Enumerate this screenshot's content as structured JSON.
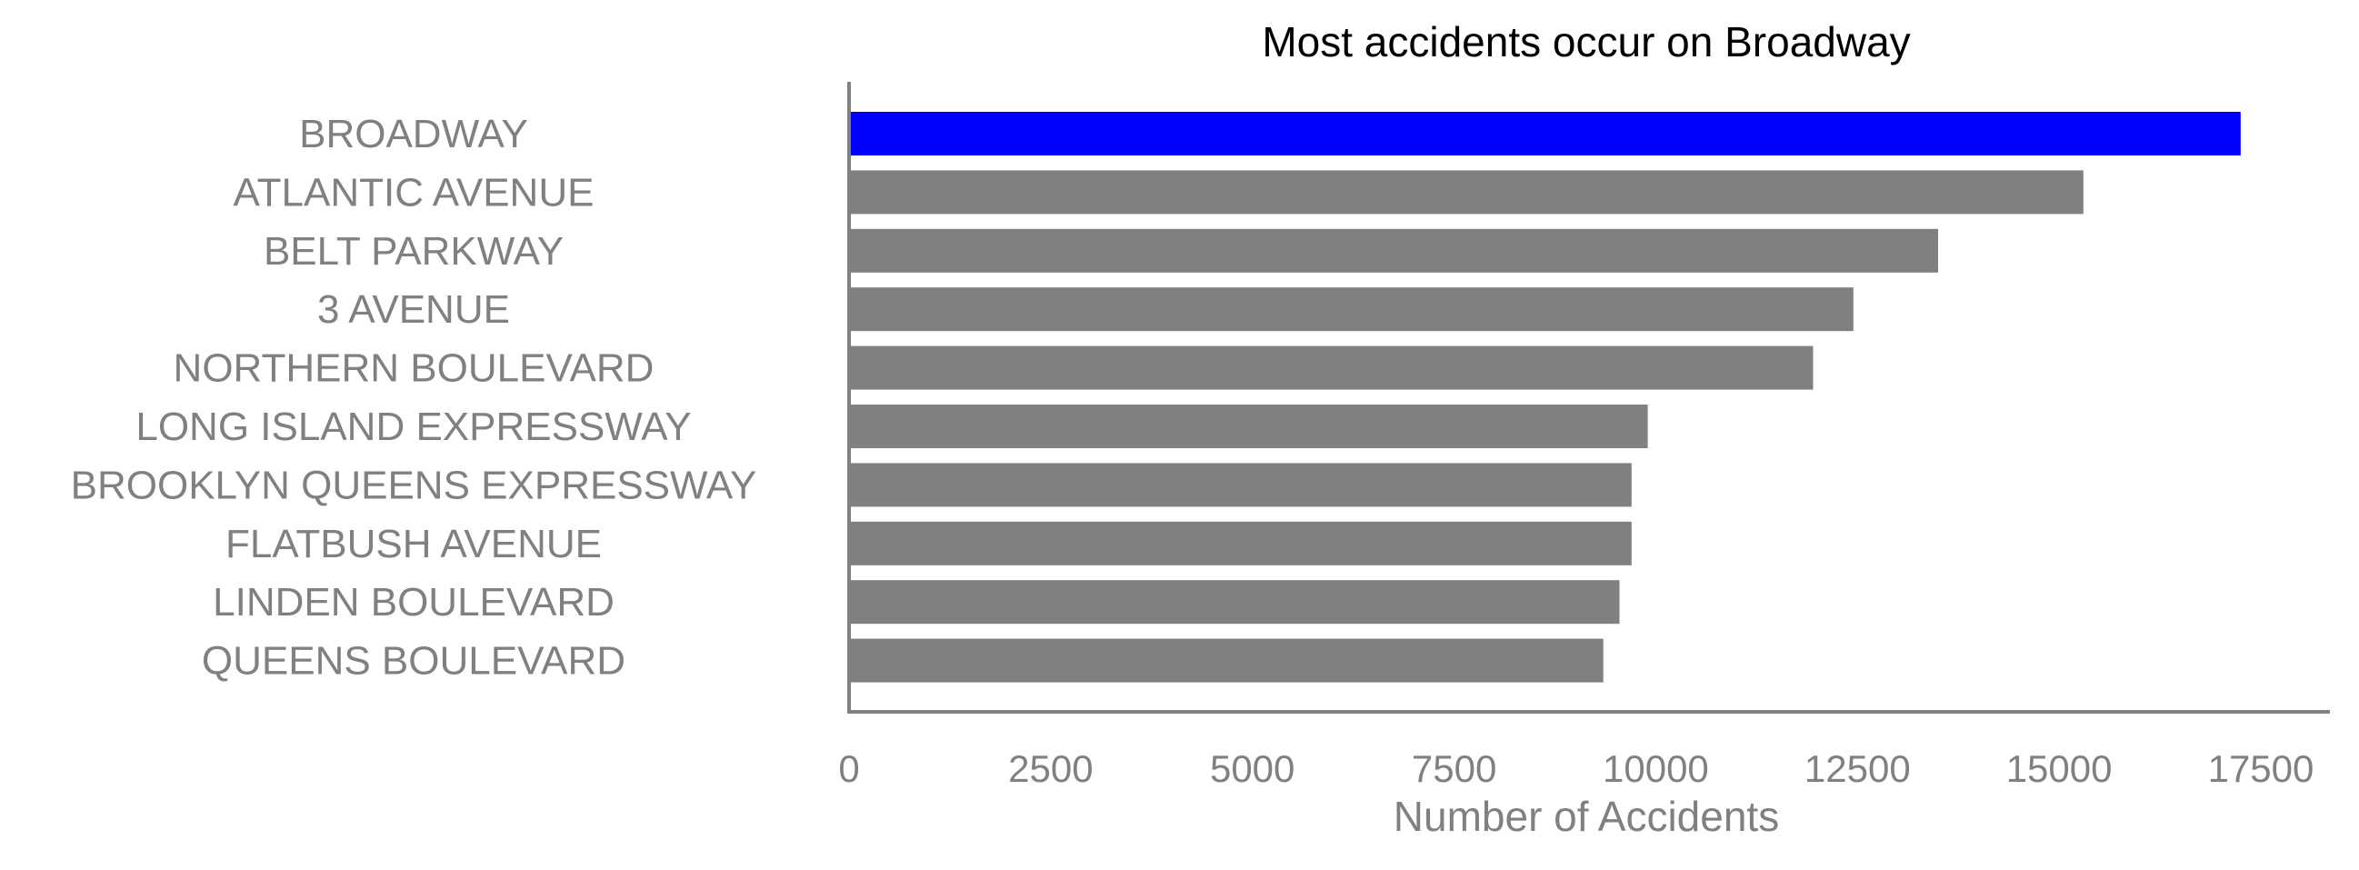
{
  "chart_data": {
    "type": "bar",
    "orientation": "horizontal",
    "title": "Most accidents occur on Broadway",
    "xlabel": "Number of Accidents",
    "ylabel": "",
    "xlim": [
      0,
      18000
    ],
    "xticks": [
      0,
      2500,
      5000,
      7500,
      10000,
      12500,
      15000,
      17500
    ],
    "categories": [
      "BROADWAY",
      "ATLANTIC AVENUE",
      "BELT PARKWAY",
      "3 AVENUE",
      "NORTHERN BOULEVARD",
      "LONG ISLAND EXPRESSWAY",
      "BROOKLYN QUEENS EXPRESSWAY",
      "FLATBUSH AVENUE",
      "LINDEN BOULEVARD",
      "QUEENS BOULEVARD"
    ],
    "values": [
      17250,
      15300,
      13500,
      12450,
      11950,
      9900,
      9700,
      9700,
      9550,
      9350
    ],
    "bar_colors": [
      "#0000ff",
      "#808080",
      "#808080",
      "#808080",
      "#808080",
      "#808080",
      "#808080",
      "#808080",
      "#808080",
      "#808080"
    ],
    "text_color": "#808080",
    "title_color": "#000000",
    "axis_color": "#808080",
    "grid": false,
    "legend": "none"
  }
}
